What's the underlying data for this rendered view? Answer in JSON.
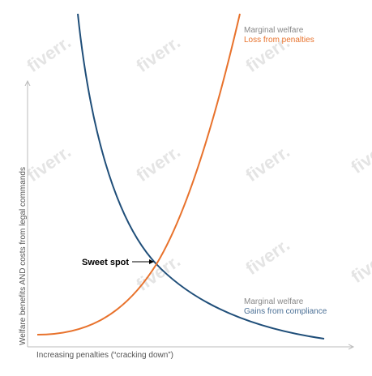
{
  "watermark": "fiverr.",
  "y_axis_label": "Welfare benefits AND costs from legal commands",
  "x_axis_label": "Increasing penalties (“cracking down”)",
  "loss_curve": {
    "heading": "Marginal welfare",
    "label": "Loss from penalties"
  },
  "gains_curve": {
    "heading": "Marginal welfare",
    "label": "Gains from compliance"
  },
  "sweet_spot": "Sweet spot"
}
